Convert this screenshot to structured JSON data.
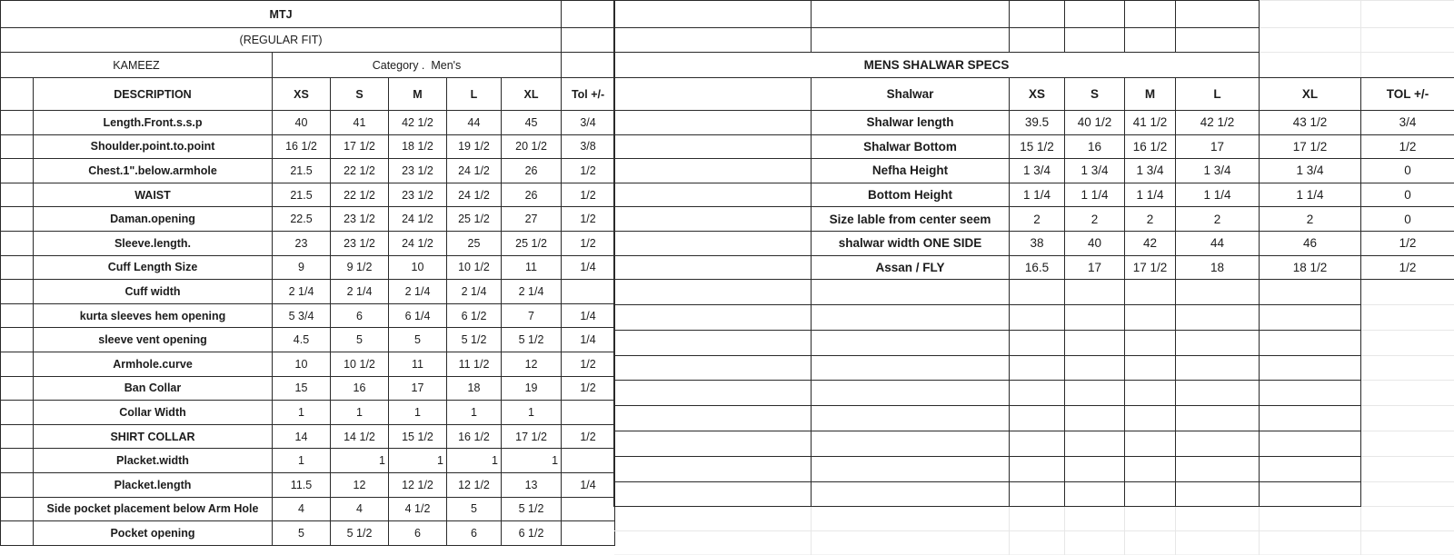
{
  "colors": {
    "grid_dark": "#2a2a2a",
    "grid_faint": "#e7e7e7",
    "text": "#1c1c1c",
    "background": "#ffffff"
  },
  "left_table": {
    "title": "MTJ",
    "subtitle": "(REGULAR FIT)",
    "name": "KAMEEZ",
    "category": "Category .  Men's",
    "columns": [
      "DESCRIPTION",
      "XS",
      "S",
      "M",
      "L",
      "XL",
      "Tol +/-"
    ],
    "rows": [
      {
        "label": "Length.Front.s.s.p",
        "values": [
          "40",
          "41",
          "42 1/2",
          "44",
          "45"
        ],
        "tol": "3/4"
      },
      {
        "label": "Shoulder.point.to.point",
        "values": [
          "16 1/2",
          "17 1/2",
          "18 1/2",
          "19 1/2",
          "20 1/2"
        ],
        "tol": "3/8"
      },
      {
        "label": "Chest.1\".below.armhole",
        "values": [
          "21.5",
          "22 1/2",
          "23 1/2",
          "24 1/2",
          "26"
        ],
        "tol": "1/2"
      },
      {
        "label": "WAIST",
        "values": [
          "21.5",
          "22 1/2",
          "23 1/2",
          "24 1/2",
          "26"
        ],
        "tol": "1/2"
      },
      {
        "label": "Daman.opening",
        "values": [
          "22.5",
          "23 1/2",
          "24 1/2",
          "25 1/2",
          "27"
        ],
        "tol": "1/2"
      },
      {
        "label": "Sleeve.length.",
        "values": [
          "23",
          "23 1/2",
          "24 1/2",
          "25",
          "25 1/2"
        ],
        "tol": "1/2"
      },
      {
        "label": "Cuff Length Size",
        "values": [
          "9",
          "9 1/2",
          "10",
          "10 1/2",
          "11"
        ],
        "tol": "1/4"
      },
      {
        "label": "Cuff width",
        "values": [
          "2 1/4",
          "2 1/4",
          "2 1/4",
          "2 1/4",
          "2 1/4"
        ],
        "tol": ""
      },
      {
        "label": "kurta sleeves hem opening",
        "values": [
          "5 3/4",
          "6",
          "6 1/4",
          "6 1/2",
          "7"
        ],
        "tol": "1/4"
      },
      {
        "label": "sleeve vent opening",
        "values": [
          "4.5",
          "5",
          "5",
          "5 1/2",
          "5 1/2"
        ],
        "tol": "1/4"
      },
      {
        "label": "Armhole.curve",
        "values": [
          "10",
          "10 1/2",
          "11",
          "11 1/2",
          "12"
        ],
        "tol": "1/2"
      },
      {
        "label": "Ban Collar",
        "values": [
          "15",
          "16",
          "17",
          "18",
          "19"
        ],
        "tol": "1/2"
      },
      {
        "label": "Collar Width",
        "values": [
          "1",
          "1",
          "1",
          "1",
          "1"
        ],
        "tol": ""
      },
      {
        "label": "SHIRT COLLAR",
        "values": [
          "14",
          "14 1/2",
          "15 1/2",
          "16 1/2",
          "17 1/2"
        ],
        "tol": "1/2"
      },
      {
        "label": "Placket.width",
        "values": [
          "1",
          "1",
          "1",
          "1",
          "1"
        ],
        "tol": "",
        "values_align": [
          "center",
          "right",
          "right",
          "right",
          "right"
        ]
      },
      {
        "label": "Placket.length",
        "values": [
          "11.5",
          "12",
          "12 1/2",
          "12 1/2",
          "13"
        ],
        "tol": "1/4"
      },
      {
        "label": "Side pocket placement below Arm Hole",
        "values": [
          "4",
          "4",
          "4 1/2",
          "5",
          "5 1/2"
        ],
        "tol": ""
      },
      {
        "label": "Pocket opening",
        "values": [
          "5",
          "5 1/2",
          "6",
          "6",
          "6 1/2"
        ],
        "tol": ""
      }
    ]
  },
  "right_table": {
    "title": "MENS SHALWAR SPECS",
    "columns": [
      "Shalwar",
      "XS",
      "S",
      "M",
      "L",
      "XL",
      "TOL +/-"
    ],
    "rows": [
      {
        "label": "Shalwar length",
        "values": [
          "39.5",
          "40 1/2",
          "41 1/2",
          "42 1/2",
          "43 1/2"
        ],
        "tol": "3/4"
      },
      {
        "label": "Shalwar Bottom",
        "values": [
          "15 1/2",
          "16",
          "16 1/2",
          "17",
          "17 1/2"
        ],
        "tol": "1/2"
      },
      {
        "label": "Nefha Height",
        "values": [
          "1 3/4",
          "1 3/4",
          "1 3/4",
          "1 3/4",
          "1 3/4"
        ],
        "tol": "0"
      },
      {
        "label": "Bottom Height",
        "values": [
          "1 1/4",
          "1 1/4",
          "1 1/4",
          "1 1/4",
          "1 1/4"
        ],
        "tol": "0"
      },
      {
        "label": "Size lable from center seem",
        "values": [
          "2",
          "2",
          "2",
          "2",
          "2"
        ],
        "tol": "0"
      },
      {
        "label": "shalwar width ONE SIDE",
        "values": [
          "38",
          "40",
          "42",
          "44",
          "46"
        ],
        "tol": "1/2"
      },
      {
        "label": "Assan / FLY",
        "values": [
          "16.5",
          "17",
          "17 1/2",
          "18",
          "18 1/2"
        ],
        "tol": "1/2"
      }
    ]
  }
}
